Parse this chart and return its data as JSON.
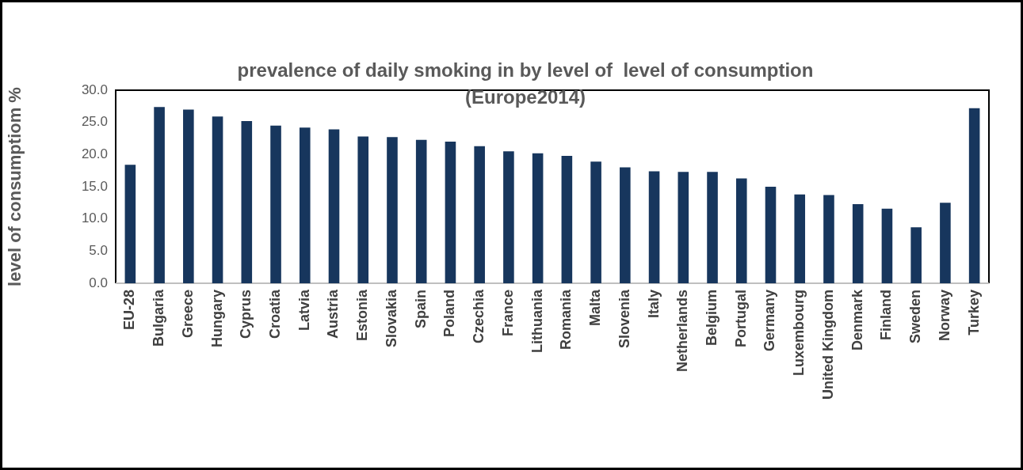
{
  "chart_data": {
    "type": "bar",
    "title": "prevalence of daily smoking in by level of  level of consumption\n(Europe2014)",
    "ylabel": "level of consumptiom %",
    "categories": [
      "EU-28",
      "Bulgaria",
      "Greece",
      "Hungary",
      "Cyprus",
      "Croatia",
      "Latvia",
      "Austria",
      "Estonia",
      "Slovakia",
      "Spain",
      "Poland",
      "Czechia",
      "France",
      "Lithuania",
      "Romania",
      "Malta",
      "Slovenia",
      "Italy",
      "Netherlands",
      "Belgium",
      "Portugal",
      "Germany",
      "Luxembourg",
      "United Kingdom",
      "Denmark",
      "Finland",
      "Sweden",
      "Norway",
      "Turkey"
    ],
    "values": [
      18.4,
      27.4,
      27.0,
      25.9,
      25.2,
      24.5,
      24.2,
      23.9,
      22.8,
      22.7,
      22.3,
      22.0,
      21.3,
      20.5,
      20.2,
      19.8,
      18.9,
      18.0,
      17.4,
      17.3,
      17.3,
      16.3,
      15.0,
      13.8,
      13.7,
      12.3,
      11.6,
      8.7,
      12.5,
      27.2
    ],
    "color": "#17365d",
    "ylim": [
      0,
      30
    ],
    "yticks": [
      {
        "value": 0,
        "label": "0.0"
      },
      {
        "value": 5,
        "label": "5.0"
      },
      {
        "value": 10,
        "label": "10.0"
      },
      {
        "value": 15,
        "label": "15.0"
      },
      {
        "value": 20,
        "label": "20.0"
      },
      {
        "value": 25,
        "label": "25.0"
      },
      {
        "value": 30,
        "label": "30.0"
      }
    ],
    "grid": false,
    "legend": false
  }
}
